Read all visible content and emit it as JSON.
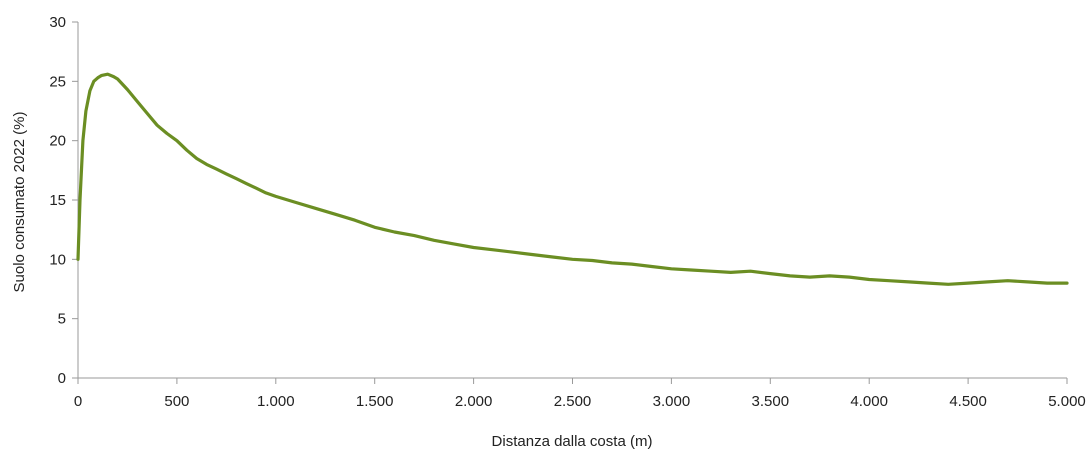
{
  "chart_data": {
    "type": "line",
    "title": "",
    "xlabel": "Distanza dalla costa (m)",
    "ylabel": "Suolo consumato 2022 (%)",
    "xlim": [
      0,
      5000
    ],
    "ylim": [
      0,
      30
    ],
    "x_ticks": [
      0,
      500,
      1000,
      1500,
      2000,
      2500,
      3000,
      3500,
      4000,
      4500,
      5000
    ],
    "x_tick_labels": [
      "0",
      "500",
      "1.000",
      "1.500",
      "2.000",
      "2.500",
      "3.000",
      "3.500",
      "4.000",
      "4.500",
      "5.000"
    ],
    "y_ticks": [
      0,
      5,
      10,
      15,
      20,
      25,
      30
    ],
    "y_tick_labels": [
      "0",
      "5",
      "10",
      "15",
      "20",
      "25",
      "30"
    ],
    "grid": false,
    "legend": "none",
    "series": [
      {
        "color": "#6b8e23",
        "x": [
          0,
          10,
          25,
          40,
          60,
          80,
          100,
          120,
          150,
          180,
          200,
          250,
          300,
          350,
          400,
          450,
          500,
          550,
          600,
          650,
          700,
          750,
          800,
          850,
          900,
          950,
          1000,
          1100,
          1200,
          1300,
          1400,
          1500,
          1600,
          1700,
          1800,
          1900,
          2000,
          2100,
          2200,
          2300,
          2400,
          2500,
          2600,
          2700,
          2800,
          2900,
          3000,
          3100,
          3200,
          3300,
          3400,
          3500,
          3600,
          3700,
          3800,
          3900,
          4000,
          4100,
          4200,
          4300,
          4400,
          4500,
          4600,
          4700,
          4800,
          4900,
          5000
        ],
        "y": [
          10,
          15,
          20,
          22.5,
          24.2,
          25.0,
          25.3,
          25.5,
          25.6,
          25.4,
          25.2,
          24.3,
          23.3,
          22.3,
          21.3,
          20.6,
          20.0,
          19.2,
          18.5,
          18.0,
          17.6,
          17.2,
          16.8,
          16.4,
          16.0,
          15.6,
          15.3,
          14.8,
          14.3,
          13.8,
          13.3,
          12.7,
          12.3,
          12.0,
          11.6,
          11.3,
          11.0,
          10.8,
          10.6,
          10.4,
          10.2,
          10.0,
          9.9,
          9.7,
          9.6,
          9.4,
          9.2,
          9.1,
          9.0,
          8.9,
          9.0,
          8.8,
          8.6,
          8.5,
          8.6,
          8.5,
          8.3,
          8.2,
          8.1,
          8.0,
          7.9,
          8.0,
          8.1,
          8.2,
          8.1,
          8.0,
          8.0
        ]
      }
    ]
  }
}
